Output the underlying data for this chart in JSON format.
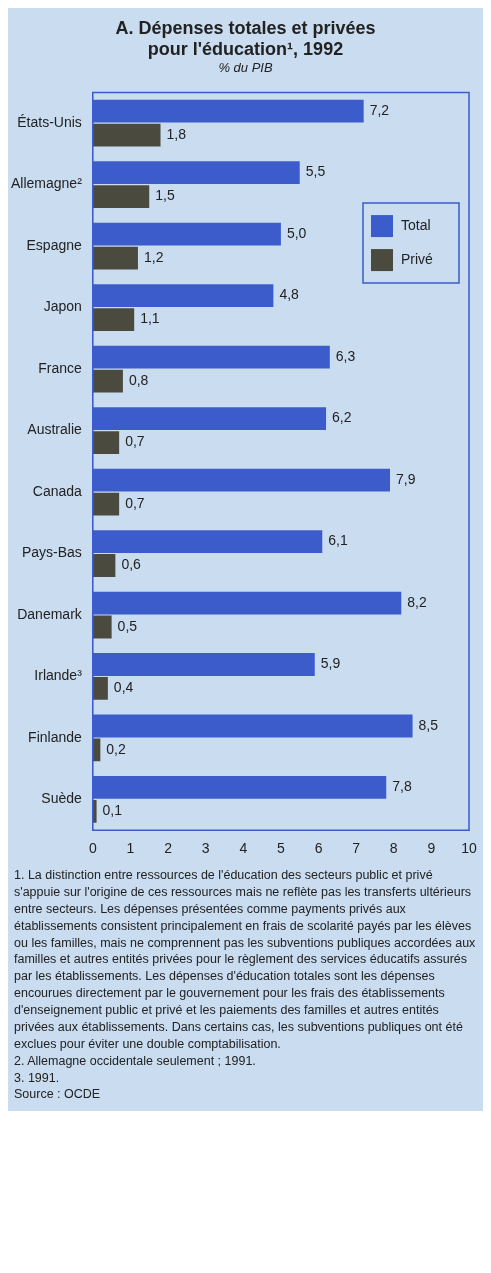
{
  "chart_data": {
    "type": "bar",
    "orientation": "horizontal",
    "title": "A. Dépenses totales et privées pour l'éducation¹, 1992",
    "subtitle": "% du PIB",
    "categories": [
      "États-Unis",
      "Allemagne²",
      "Espagne",
      "Japon",
      "France",
      "Australie",
      "Canada",
      "Pays-Bas",
      "Danemark",
      "Irlande³",
      "Finlande",
      "Suède"
    ],
    "series": [
      {
        "name": "Total",
        "color": "#3c5ccc",
        "values": [
          7.2,
          5.5,
          5.0,
          4.8,
          6.3,
          6.2,
          7.9,
          6.1,
          8.2,
          5.9,
          8.5,
          7.8
        ],
        "value_labels": [
          "7,2",
          "5,5",
          "5,0",
          "4,8",
          "6,3",
          "6,2",
          "7,9",
          "6,1",
          "8,2",
          "5,9",
          "8,5",
          "7,8"
        ]
      },
      {
        "name": "Privé",
        "color": "#4b4a3e",
        "values": [
          1.8,
          1.5,
          1.2,
          1.1,
          0.8,
          0.7,
          0.7,
          0.6,
          0.5,
          0.4,
          0.2,
          0.1
        ],
        "value_labels": [
          "1,8",
          "1,5",
          "1,2",
          "1,1",
          "0,8",
          "0,7",
          "0,7",
          "0,6",
          "0,5",
          "0,4",
          "0,2",
          "0,1"
        ]
      }
    ],
    "xlim": [
      0,
      10
    ],
    "xticks": [
      0,
      1,
      2,
      3,
      4,
      5,
      6,
      7,
      8,
      9,
      10
    ],
    "grid": false,
    "legend": "top right",
    "annotations": [
      "1. La distinction entre ressources de l'éducation des secteurs public et privé s'appuie sur l'origine de ces ressources mais ne reflète pas les transferts ultérieurs entre secteurs. Les dépenses présentées comme payments privés aux établissements consistent principalement en frais de scolarité payés par les élèves ou les familles, mais ne comprennent pas les subventions publiques accordées aux familles et autres entités privées pour le règlement des services éducatifs assurés par les établissements. Les dépenses d'éducation totales sont les dépenses encourues directement par le gouvernement pour les frais des établissements d'enseignement public et privé et les paiements des familles et autres entités privées aux établissements. Dans certains cas, les subventions publiques ont été exclues pour éviter une double comptabilisation.",
      "2. Allemagne occidentale seulement ; 1991.",
      "3. 1991.",
      "Source : OCDE"
    ]
  }
}
